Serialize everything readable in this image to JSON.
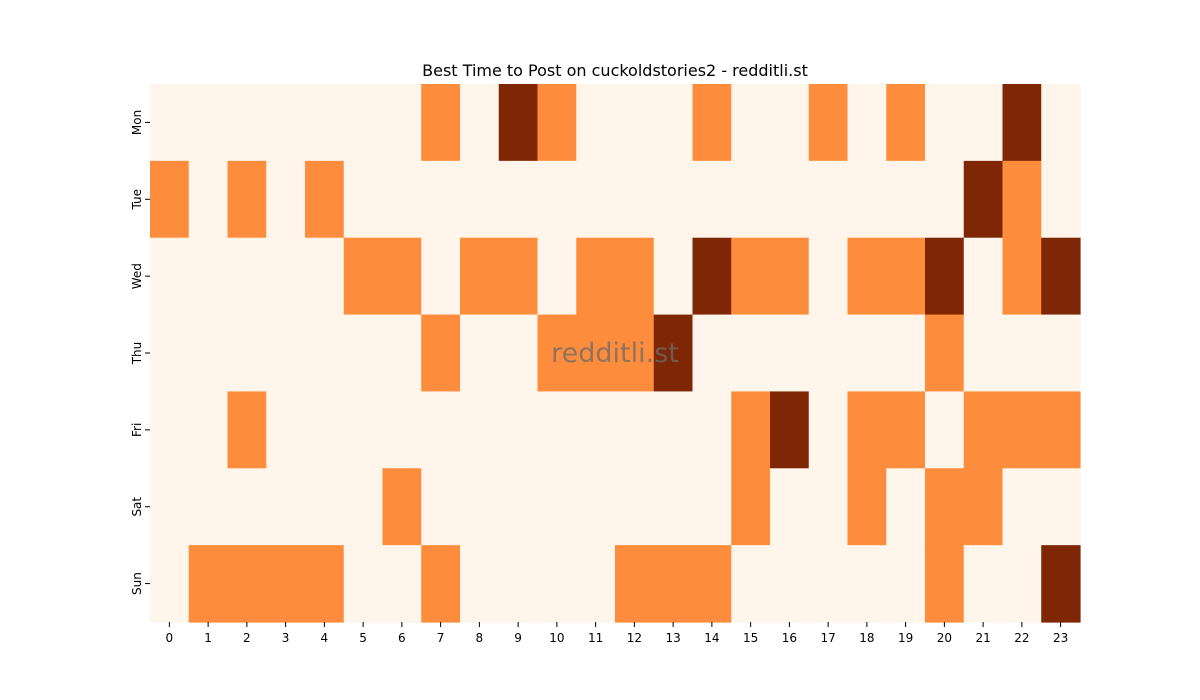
{
  "chart_data": {
    "type": "heatmap",
    "title": "Best Time to Post on cuckoldstories2 - redditli.st",
    "xlabel": "",
    "ylabel": "",
    "x_categories": [
      "0",
      "1",
      "2",
      "3",
      "4",
      "5",
      "6",
      "7",
      "8",
      "9",
      "10",
      "11",
      "12",
      "13",
      "14",
      "15",
      "16",
      "17",
      "18",
      "19",
      "20",
      "21",
      "22",
      "23"
    ],
    "y_categories": [
      "Mon",
      "Tue",
      "Wed",
      "Thu",
      "Fri",
      "Sat",
      "Sun"
    ],
    "value_levels": [
      0,
      1,
      2
    ],
    "colormap": "Oranges",
    "level_colors": [
      "#fff5eb",
      "#fd8d3c",
      "#7f2704"
    ],
    "colorbar": false,
    "grid": false,
    "values": [
      [
        0,
        0,
        0,
        0,
        0,
        0,
        0,
        1,
        0,
        2,
        1,
        0,
        0,
        0,
        1,
        0,
        0,
        1,
        0,
        1,
        0,
        0,
        2,
        0
      ],
      [
        1,
        0,
        1,
        0,
        1,
        0,
        0,
        0,
        0,
        0,
        0,
        0,
        0,
        0,
        0,
        0,
        0,
        0,
        0,
        0,
        0,
        2,
        1,
        0
      ],
      [
        0,
        0,
        0,
        0,
        0,
        1,
        1,
        0,
        1,
        1,
        0,
        1,
        1,
        0,
        2,
        1,
        1,
        0,
        1,
        1,
        2,
        0,
        1,
        2
      ],
      [
        0,
        0,
        0,
        0,
        0,
        0,
        0,
        1,
        0,
        0,
        1,
        1,
        1,
        2,
        0,
        0,
        0,
        0,
        0,
        0,
        1,
        0,
        0,
        0
      ],
      [
        0,
        0,
        1,
        0,
        0,
        0,
        0,
        0,
        0,
        0,
        0,
        0,
        0,
        0,
        0,
        1,
        2,
        0,
        1,
        1,
        0,
        1,
        1,
        1
      ],
      [
        0,
        0,
        0,
        0,
        0,
        0,
        1,
        0,
        0,
        0,
        0,
        0,
        0,
        0,
        0,
        1,
        0,
        0,
        1,
        0,
        1,
        1,
        0,
        0
      ],
      [
        0,
        1,
        1,
        1,
        1,
        0,
        0,
        1,
        0,
        0,
        0,
        0,
        1,
        1,
        1,
        0,
        0,
        0,
        0,
        0,
        1,
        0,
        0,
        2
      ]
    ],
    "watermark": "redditli.st"
  }
}
